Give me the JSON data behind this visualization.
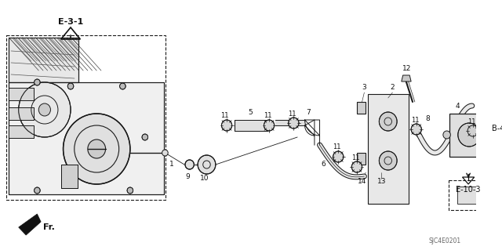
{
  "bg_color": "#ffffff",
  "diagram_code": "SJC4E0201",
  "figsize": [
    6.4,
    3.19
  ],
  "dpi": 100,
  "line_color": "#1a1a1a",
  "text_color": "#111111",
  "gray": "#888888",
  "light_gray": "#cccccc",
  "e31_label": "E-3-1",
  "e103_label": "E-10-3",
  "b4_label": "B-4",
  "fr_label": "Fr.",
  "part_nums": [
    "1",
    "2",
    "3",
    "4",
    "5",
    "6",
    "7",
    "8",
    "9",
    "10",
    "11",
    "12",
    "13",
    "14"
  ],
  "clamp_label": "11"
}
